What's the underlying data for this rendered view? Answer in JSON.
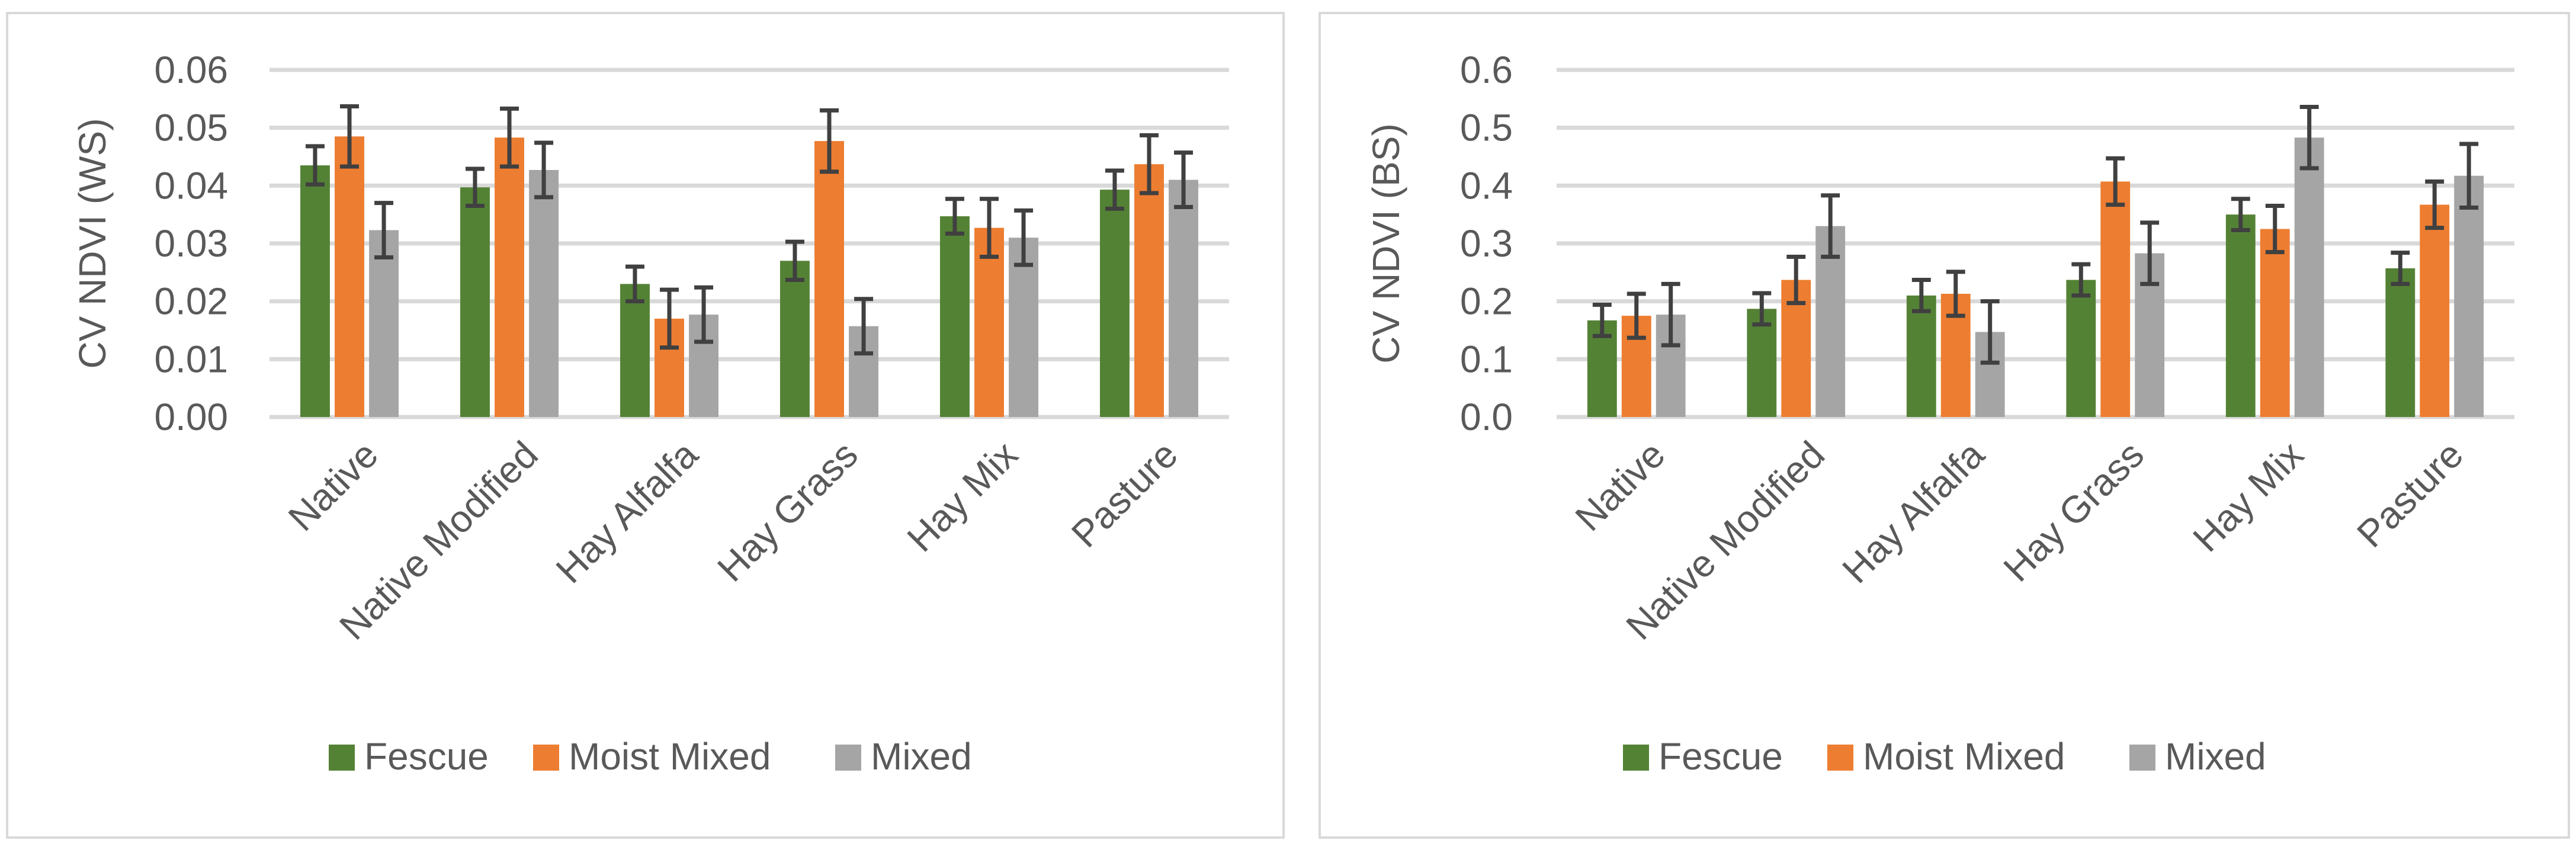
{
  "chart_data": [
    {
      "type": "bar",
      "title": "",
      "xlabel": "",
      "ylabel": "CV NDVI (WS)",
      "ylim": [
        0,
        0.06
      ],
      "yticks": [
        0,
        0.01,
        0.02,
        0.03,
        0.04,
        0.05,
        0.06
      ],
      "ytick_labels": [
        "0.00",
        "0.01",
        "0.02",
        "0.03",
        "0.04",
        "0.05",
        "0.06"
      ],
      "grid": true,
      "legend_position": "bottom",
      "categories": [
        "Native",
        "Native Modified",
        "Hay Alfalfa",
        "Hay Grass",
        "Hay Mix",
        "Pasture"
      ],
      "series": [
        {
          "name": "Fescue",
          "color": "#548235",
          "values": [
            0.0435,
            0.0397,
            0.023,
            0.027,
            0.0347,
            0.0393
          ],
          "errors": [
            0.0033,
            0.0032,
            0.003,
            0.0033,
            0.003,
            0.0033
          ]
        },
        {
          "name": "Moist Mixed",
          "color": "#ed7d31",
          "values": [
            0.0485,
            0.0483,
            0.017,
            0.0477,
            0.0327,
            0.0437
          ],
          "errors": [
            0.0052,
            0.005,
            0.005,
            0.0053,
            0.005,
            0.005
          ]
        },
        {
          "name": "Mixed",
          "color": "#a5a5a5",
          "values": [
            0.0323,
            0.0427,
            0.0177,
            0.0157,
            0.031,
            0.041
          ],
          "errors": [
            0.0047,
            0.0047,
            0.0047,
            0.0047,
            0.0047,
            0.0047
          ]
        }
      ]
    },
    {
      "type": "bar",
      "title": "",
      "xlabel": "",
      "ylabel": "CV NDVI (BS)",
      "ylim": [
        0,
        0.6
      ],
      "yticks": [
        0,
        0.1,
        0.2,
        0.3,
        0.4,
        0.5,
        0.6
      ],
      "ytick_labels": [
        "0.0",
        "0.1",
        "0.2",
        "0.3",
        "0.4",
        "0.5",
        "0.6"
      ],
      "grid": true,
      "legend_position": "bottom",
      "categories": [
        "Native",
        "Native Modified",
        "Hay Alfalfa",
        "Hay Grass",
        "Hay Mix",
        "Pasture"
      ],
      "series": [
        {
          "name": "Fescue",
          "color": "#548235",
          "values": [
            0.167,
            0.187,
            0.21,
            0.237,
            0.35,
            0.257
          ],
          "errors": [
            0.027,
            0.027,
            0.027,
            0.027,
            0.027,
            0.027
          ]
        },
        {
          "name": "Moist Mixed",
          "color": "#ed7d31",
          "values": [
            0.175,
            0.237,
            0.213,
            0.407,
            0.325,
            0.367
          ],
          "errors": [
            0.038,
            0.04,
            0.038,
            0.04,
            0.04,
            0.04
          ]
        },
        {
          "name": "Mixed",
          "color": "#a5a5a5",
          "values": [
            0.177,
            0.33,
            0.147,
            0.283,
            0.483,
            0.417
          ],
          "errors": [
            0.053,
            0.053,
            0.053,
            0.053,
            0.053,
            0.055
          ]
        }
      ]
    }
  ]
}
